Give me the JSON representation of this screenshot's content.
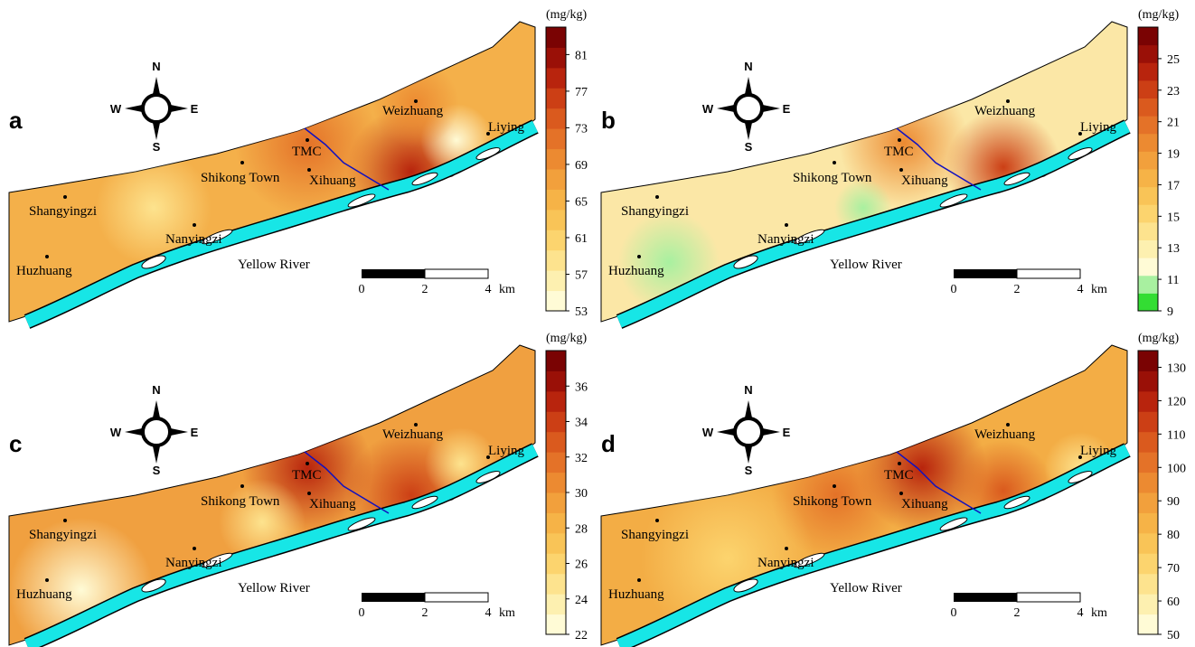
{
  "panels": [
    {
      "letter": "a",
      "unit": "(mg/kg)",
      "range": [
        53,
        84
      ],
      "ticks": [
        53,
        57,
        61,
        65,
        69,
        73,
        77,
        81
      ],
      "colors": [
        "#fffbd6",
        "#fdf0b0",
        "#fde38e",
        "#fcd46e",
        "#f9c457",
        "#f6b347",
        "#f2a03c",
        "#ec8a31",
        "#e47228",
        "#da5a1e",
        "#cc3f15",
        "#b8240d",
        "#9a1007",
        "#7a0303"
      ],
      "places": [
        "Weizhuang",
        "Liying",
        "TMC",
        "Xihuang",
        "Shikong Town",
        "Shangyingzi",
        "Nanyingzi",
        "Huzhuang"
      ],
      "river": "Yellow River",
      "compass": [
        "N",
        "S",
        "W",
        "E"
      ],
      "scale": [
        "0",
        "2",
        "4",
        "km"
      ]
    },
    {
      "letter": "b",
      "unit": "(mg/kg)",
      "range": [
        9,
        27
      ],
      "ticks": [
        9,
        11,
        13,
        15,
        17,
        19,
        21,
        23,
        25
      ],
      "colors": [
        "#33dd33",
        "#a8f0a0",
        "#fffbd6",
        "#fdf0b0",
        "#fde38e",
        "#fcd46e",
        "#f9c457",
        "#f6b347",
        "#f2a03c",
        "#ec8a31",
        "#e47228",
        "#da5a1e",
        "#cc3f15",
        "#b8240d",
        "#9a1007",
        "#7a0303"
      ],
      "places": [
        "Weizhuang",
        "Liying",
        "TMC",
        "Xihuang",
        "Shikong Town",
        "Shangyingzi",
        "Nanyingzi",
        "Huzhuang"
      ],
      "river": "Yellow River",
      "compass": [
        "N",
        "S",
        "W",
        "E"
      ],
      "scale": [
        "0",
        "2",
        "4",
        "km"
      ]
    },
    {
      "letter": "c",
      "unit": "(mg/kg)",
      "range": [
        22,
        38
      ],
      "ticks": [
        22,
        24,
        26,
        28,
        30,
        32,
        34,
        36
      ],
      "colors": [
        "#fffbd6",
        "#fdf0b0",
        "#fde38e",
        "#fcd46e",
        "#f9c457",
        "#f6b347",
        "#f2a03c",
        "#ec8a31",
        "#e47228",
        "#da5a1e",
        "#cc3f15",
        "#b8240d",
        "#9a1007",
        "#7a0303"
      ],
      "places": [
        "Weizhuang",
        "Liying",
        "TMC",
        "Xihuang",
        "Shikong Town",
        "Shangyingzi",
        "Nanyingzi",
        "Huzhuang"
      ],
      "river": "Yellow River",
      "compass": [
        "N",
        "S",
        "W",
        "E"
      ],
      "scale": [
        "0",
        "2",
        "4",
        "km"
      ]
    },
    {
      "letter": "d",
      "unit": "(mg/kg)",
      "range": [
        50,
        135
      ],
      "ticks": [
        50,
        60,
        70,
        80,
        90,
        100,
        110,
        120,
        130
      ],
      "colors": [
        "#fffbd6",
        "#fdf0b0",
        "#fde38e",
        "#fcd46e",
        "#f9c457",
        "#f6b347",
        "#f2a03c",
        "#ec8a31",
        "#e47228",
        "#da5a1e",
        "#cc3f15",
        "#b8240d",
        "#9a1007",
        "#7a0303"
      ],
      "places": [
        "Weizhuang",
        "Liying",
        "TMC",
        "Xihuang",
        "Shikong Town",
        "Shangyingzi",
        "Nanyingzi",
        "Huzhuang"
      ],
      "river": "Yellow River",
      "compass": [
        "N",
        "S",
        "W",
        "E"
      ],
      "scale": [
        "0",
        "2",
        "4",
        "km"
      ]
    }
  ]
}
